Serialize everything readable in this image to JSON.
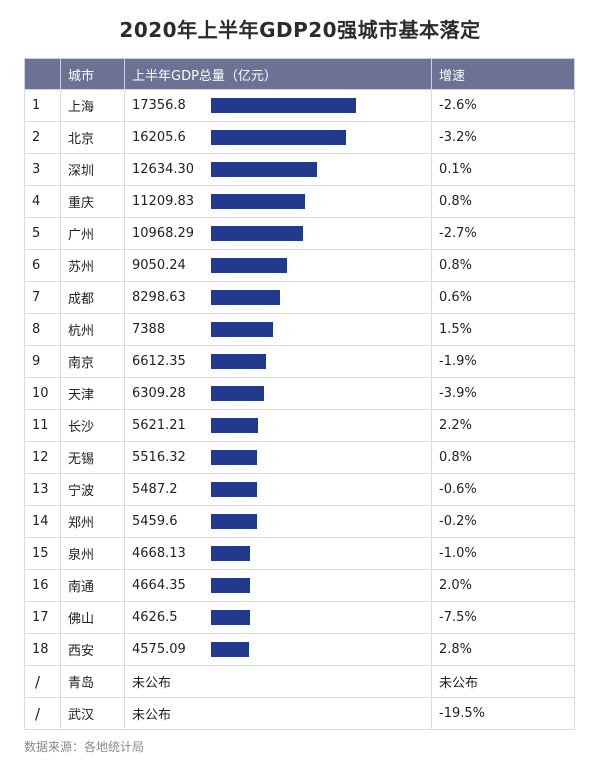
{
  "title": "2020年上半年GDP20强城市基本落定",
  "headers": {
    "rank": "",
    "city": "城市",
    "gdp": "上半年GDP总量（亿元）",
    "growth": "增速"
  },
  "source": "数据来源：各地统计局",
  "colors": {
    "header_bg": "#6b7293",
    "bar": "#223a8c"
  },
  "chart_data": {
    "type": "bar",
    "orientation": "horizontal",
    "title": "2020年上半年GDP20强城市基本落定",
    "categories": [
      "上海",
      "北京",
      "深圳",
      "重庆",
      "广州",
      "苏州",
      "成都",
      "杭州",
      "南京",
      "天津",
      "长沙",
      "无锡",
      "宁波",
      "郑州",
      "泉州",
      "南通",
      "佛山",
      "西安",
      "青岛",
      "武汉"
    ],
    "series": [
      {
        "values": [
          17356.8,
          16205.6,
          12634.3,
          11209.83,
          10968.29,
          9050.24,
          8298.63,
          7388,
          6612.35,
          6309.28,
          5621.21,
          5516.32,
          5487.2,
          5459.6,
          4668.13,
          4664.35,
          4626.5,
          4575.09,
          null,
          null
        ]
      }
    ],
    "rows": [
      {
        "rank": "1",
        "city": "上海",
        "gdp": "17356.8",
        "value": 17356.8,
        "growth": "-2.6%"
      },
      {
        "rank": "2",
        "city": "北京",
        "gdp": "16205.6",
        "value": 16205.6,
        "growth": "-3.2%"
      },
      {
        "rank": "3",
        "city": "深圳",
        "gdp": "12634.30",
        "value": 12634.3,
        "growth": "0.1%"
      },
      {
        "rank": "4",
        "city": "重庆",
        "gdp": "11209.83",
        "value": 11209.83,
        "growth": "0.8%"
      },
      {
        "rank": "5",
        "city": "广州",
        "gdp": "10968.29",
        "value": 10968.29,
        "growth": "-2.7%"
      },
      {
        "rank": "6",
        "city": "苏州",
        "gdp": "9050.24",
        "value": 9050.24,
        "growth": "0.8%"
      },
      {
        "rank": "7",
        "city": "成都",
        "gdp": "8298.63",
        "value": 8298.63,
        "growth": "0.6%"
      },
      {
        "rank": "8",
        "city": "杭州",
        "gdp": "7388",
        "value": 7388,
        "growth": "1.5%"
      },
      {
        "rank": "9",
        "city": "南京",
        "gdp": "6612.35",
        "value": 6612.35,
        "growth": "-1.9%"
      },
      {
        "rank": "10",
        "city": "天津",
        "gdp": "6309.28",
        "value": 6309.28,
        "growth": "-3.9%"
      },
      {
        "rank": "11",
        "city": "长沙",
        "gdp": "5621.21",
        "value": 5621.21,
        "growth": "2.2%"
      },
      {
        "rank": "12",
        "city": "无锡",
        "gdp": "5516.32",
        "value": 5516.32,
        "growth": "0.8%"
      },
      {
        "rank": "13",
        "city": "宁波",
        "gdp": "5487.2",
        "value": 5487.2,
        "growth": "-0.6%"
      },
      {
        "rank": "14",
        "city": "郑州",
        "gdp": "5459.6",
        "value": 5459.6,
        "growth": "-0.2%"
      },
      {
        "rank": "15",
        "city": "泉州",
        "gdp": "4668.13",
        "value": 4668.13,
        "growth": "-1.0%"
      },
      {
        "rank": "16",
        "city": "南通",
        "gdp": "4664.35",
        "value": 4664.35,
        "growth": "2.0%"
      },
      {
        "rank": "17",
        "city": "佛山",
        "gdp": "4626.5",
        "value": 4626.5,
        "growth": "-7.5%"
      },
      {
        "rank": "18",
        "city": "西安",
        "gdp": "4575.09",
        "value": 4575.09,
        "growth": "2.8%"
      },
      {
        "rank": "/",
        "city": "青岛",
        "gdp": "未公布",
        "value": null,
        "growth": "未公布"
      },
      {
        "rank": "/",
        "city": "武汉",
        "gdp": "未公布",
        "value": null,
        "growth": "-19.5%"
      }
    ]
  }
}
